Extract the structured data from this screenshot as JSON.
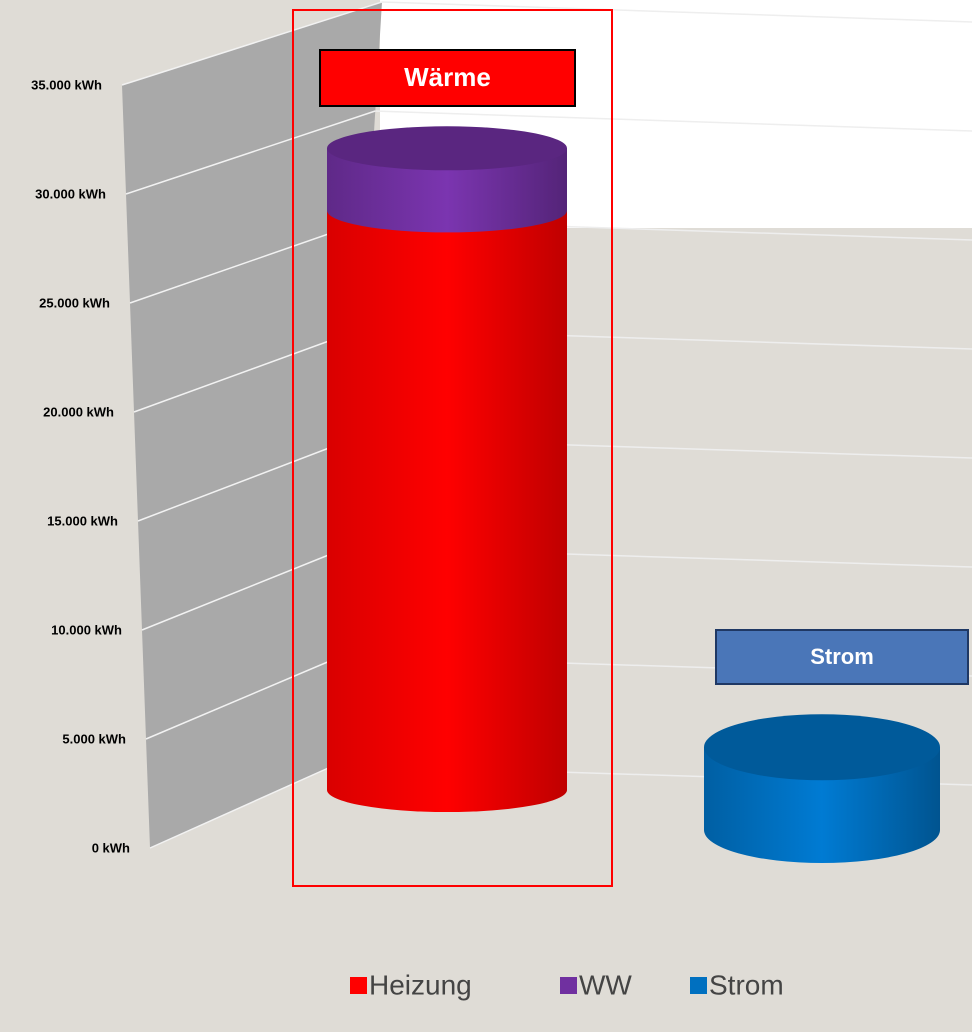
{
  "chart_data": {
    "type": "bar3d",
    "categories": [
      "Wärme",
      "Strom"
    ],
    "series": [
      {
        "name": "Heizung",
        "color": "#ff0000",
        "values": [
          28000,
          null
        ]
      },
      {
        "name": "WW",
        "color": "#7030a0",
        "values": [
          3000,
          null
        ]
      },
      {
        "name": "Strom",
        "color": "#0070c0",
        "values": [
          null,
          4000
        ]
      }
    ],
    "ylim": [
      0,
      35000
    ],
    "yticks": [
      {
        "value": 0,
        "label": "0 kWh"
      },
      {
        "value": 5000,
        "label": "5.000 kWh"
      },
      {
        "value": 10000,
        "label": "10.000 kWh"
      },
      {
        "value": 15000,
        "label": "15.000 kWh"
      },
      {
        "value": 20000,
        "label": "20.000 kWh"
      },
      {
        "value": 25000,
        "label": "25.000 kWh"
      },
      {
        "value": 30000,
        "label": "30.000 kWh"
      },
      {
        "value": 35000,
        "label": "35.000 kWh"
      }
    ],
    "grid": true,
    "legend": "bottom"
  }
}
